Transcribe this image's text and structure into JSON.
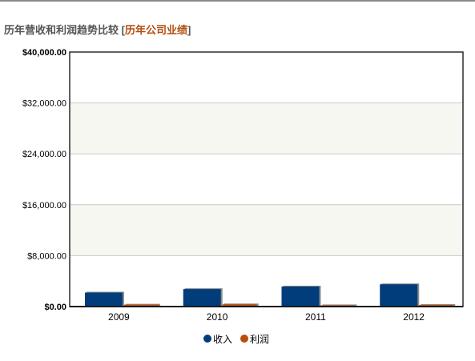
{
  "header": {
    "title": "历年营收和利润趋势比较",
    "link_open": "[",
    "link_label": "历年公司业绩",
    "link_close": "]"
  },
  "chart_data": {
    "type": "bar",
    "categories": [
      "2009",
      "2010",
      "2011",
      "2012"
    ],
    "series": [
      {
        "name": "收入",
        "color": "#003d7a",
        "values": [
          2200,
          2750,
          3150,
          3500
        ]
      },
      {
        "name": "利润",
        "color": "#b84c0a",
        "values": [
          300,
          350,
          200,
          260
        ]
      }
    ],
    "y_ticks": [
      {
        "value": 0,
        "label": "$0.00"
      },
      {
        "value": 8000,
        "label": "$8,000.00"
      },
      {
        "value": 16000,
        "label": "$16,000.00"
      },
      {
        "value": 24000,
        "label": "$24,000.00"
      },
      {
        "value": 32000,
        "label": "$32,000.00"
      },
      {
        "value": 40000,
        "label": "$40,000.00"
      }
    ],
    "ylim": [
      0,
      40000
    ],
    "grid": true,
    "alternating_bands": true,
    "band_color": "#f7f7f2",
    "legend_position": "bottom-center"
  }
}
